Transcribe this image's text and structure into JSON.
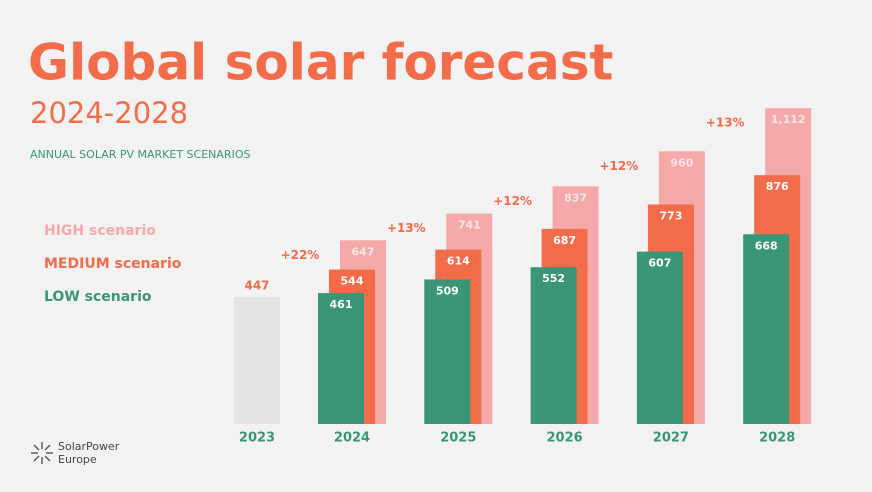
{
  "chart_data": {
    "type": "bar",
    "title": "Global solar forecast",
    "subtitle": "2024-2028",
    "caption": "ANNUAL SOLAR PV MARKET SCENARIOS",
    "categories": [
      "2023",
      "2024",
      "2025",
      "2026",
      "2027",
      "2028"
    ],
    "actual": {
      "color": "#e4e4e4",
      "label_color": "#f26c4a",
      "values": [
        447,
        null,
        null,
        null,
        null,
        null
      ]
    },
    "series": [
      {
        "name": "HIGH scenario",
        "color": "#f4a9a8",
        "values": [
          null,
          647,
          741,
          837,
          960,
          1112
        ],
        "value_labels": [
          null,
          "647",
          "741",
          "837",
          "960",
          "1,112"
        ]
      },
      {
        "name": "MEDIUM scenario",
        "color": "#f26c4a",
        "values": [
          null,
          544,
          614,
          687,
          773,
          876
        ],
        "value_labels": [
          null,
          "544",
          "614",
          "687",
          "773",
          "876"
        ]
      },
      {
        "name": "LOW scenario",
        "color": "#3a9677",
        "values": [
          null,
          461,
          509,
          552,
          607,
          668
        ],
        "value_labels": [
          null,
          "461",
          "509",
          "552",
          "607",
          "668"
        ]
      }
    ],
    "growth": {
      "values": [
        null,
        22,
        13,
        12,
        12,
        13
      ],
      "labels": [
        null,
        "+22%",
        "+13%",
        "+12%",
        "+12%",
        "+13%"
      ]
    },
    "logo": [
      "SolarPower",
      "Europe"
    ]
  }
}
